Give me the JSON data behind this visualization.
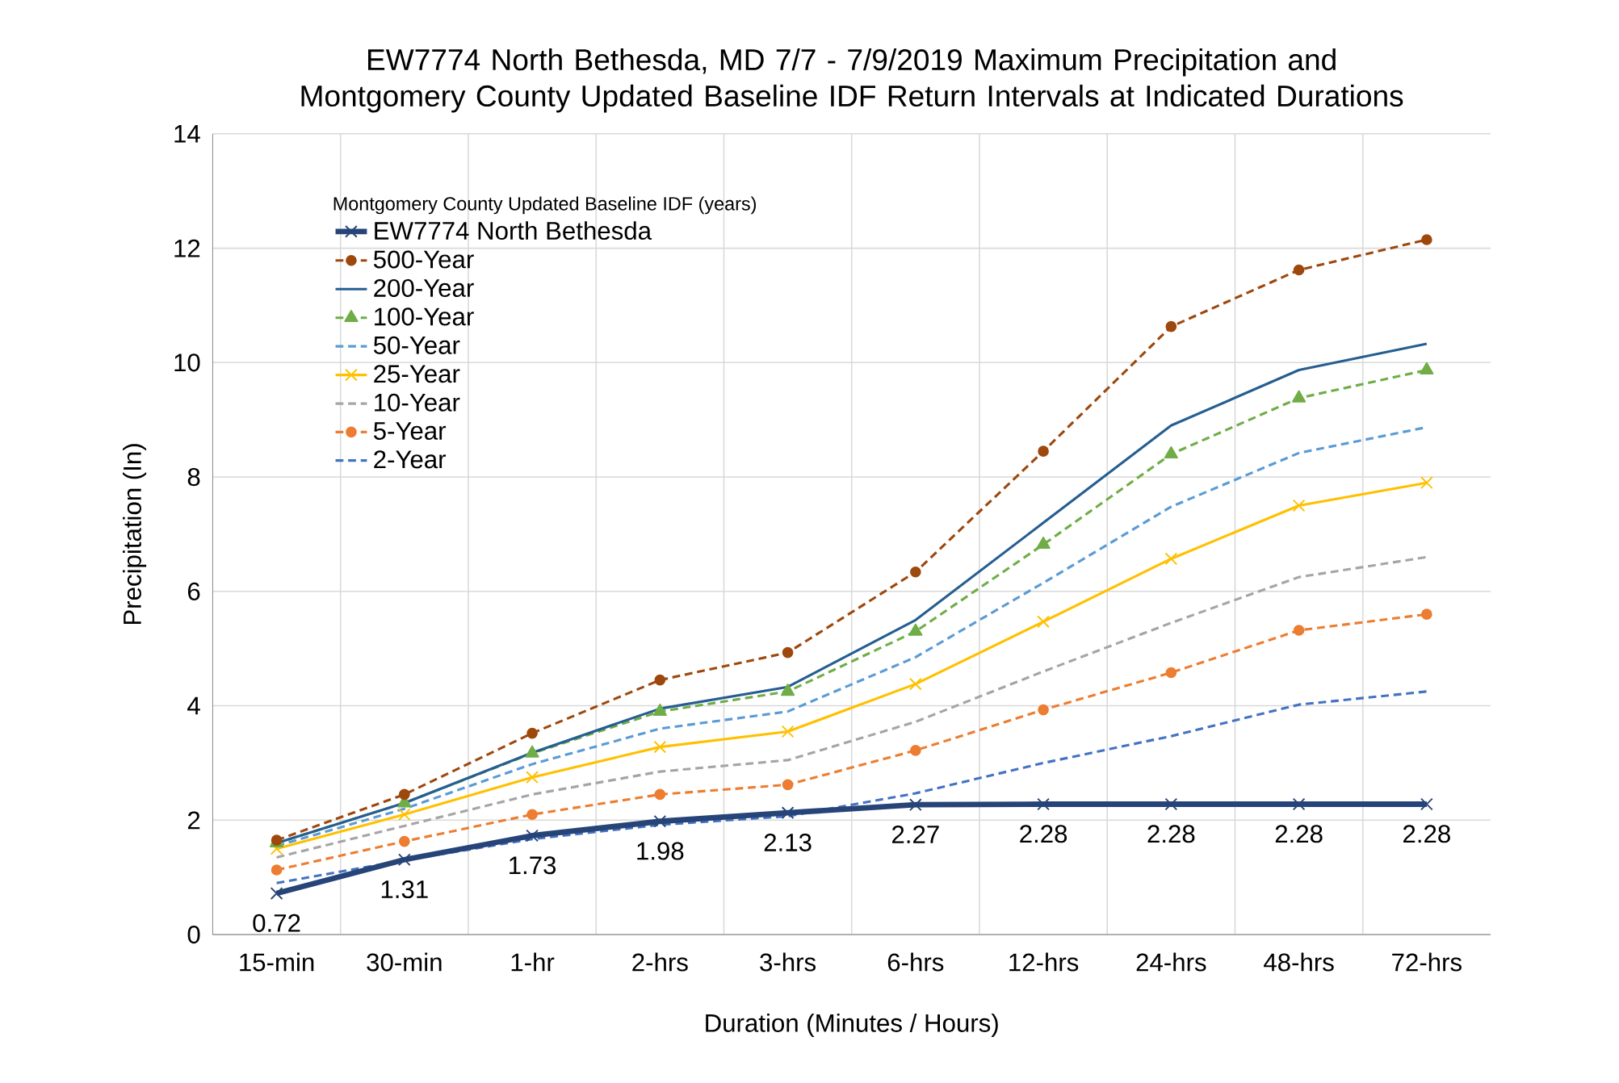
{
  "chart_data": {
    "type": "line",
    "title": "EW7774 North Bethesda,  MD 7/7 - 7/9/2019 Maximum Precipitation and Montgomery County Updated Baseline IDF Return Intervals at Indicated Durations",
    "xlabel": "Duration (Minutes / Hours)",
    "ylabel": "Precipitation (In)",
    "legend_title": "Montgomery County Updated Baseline IDF (years)",
    "categories": [
      "15-min",
      "30-min",
      "1-hr",
      "2-hrs",
      "3-hrs",
      "6-hrs",
      "12-hrs",
      "24-hrs",
      "48-hrs",
      "72-hrs"
    ],
    "series": [
      {
        "name": "EW7774 North Bethesda",
        "color": "#264478",
        "marker": "cross",
        "line_style": "solid",
        "values": [
          0.72,
          1.31,
          1.73,
          1.98,
          2.13,
          2.27,
          2.28,
          2.28,
          2.28,
          2.28
        ],
        "value_labels": [
          "0.72",
          "1.31",
          "1.73",
          "1.98",
          "2.13",
          "2.27",
          "2.28",
          "2.28",
          "2.28",
          "2.28"
        ]
      },
      {
        "name": "500-Year",
        "color": "#9e480e",
        "marker": "circle",
        "line_style": "dashed",
        "values": [
          1.65,
          2.45,
          3.52,
          4.45,
          4.93,
          6.34,
          8.45,
          10.63,
          11.62,
          12.15
        ]
      },
      {
        "name": "200-Year",
        "color": "#255e91",
        "marker": "none",
        "line_style": "solid",
        "values": [
          1.6,
          2.3,
          3.18,
          3.95,
          4.33,
          5.5,
          7.2,
          8.9,
          9.87,
          10.33
        ]
      },
      {
        "name": "100-Year",
        "color": "#70ad47",
        "marker": "triangle",
        "line_style": "dashed",
        "values": [
          1.6,
          2.3,
          3.17,
          3.9,
          4.25,
          5.3,
          6.82,
          8.4,
          9.38,
          9.87
        ]
      },
      {
        "name": "50-Year",
        "color": "#5b9bd5",
        "marker": "none",
        "line_style": "dashed",
        "values": [
          1.55,
          2.2,
          2.98,
          3.6,
          3.9,
          4.85,
          6.15,
          7.48,
          8.42,
          8.87
        ]
      },
      {
        "name": "25-Year",
        "color": "#ffc000",
        "marker": "cross",
        "line_style": "solid",
        "values": [
          1.5,
          2.1,
          2.75,
          3.28,
          3.55,
          4.38,
          5.47,
          6.57,
          7.5,
          7.9
        ]
      },
      {
        "name": "10-Year",
        "color": "#a5a5a5",
        "marker": "none",
        "line_style": "dashed",
        "values": [
          1.35,
          1.9,
          2.45,
          2.85,
          3.05,
          3.72,
          4.6,
          5.45,
          6.25,
          6.6
        ]
      },
      {
        "name": "5-Year",
        "color": "#ed7d31",
        "marker": "circle",
        "line_style": "dashed",
        "values": [
          1.13,
          1.63,
          2.1,
          2.45,
          2.62,
          3.22,
          3.93,
          4.58,
          5.32,
          5.6
        ]
      },
      {
        "name": "2-Year",
        "color": "#4472c4",
        "marker": "none",
        "line_style": "dashed",
        "values": [
          0.9,
          1.3,
          1.67,
          1.92,
          2.07,
          2.47,
          3.0,
          3.47,
          4.02,
          4.25
        ]
      }
    ],
    "ylim": [
      0,
      14
    ],
    "yticks": [
      0,
      2,
      4,
      6,
      8,
      10,
      12,
      14
    ],
    "grid": true,
    "legend": "top left"
  }
}
